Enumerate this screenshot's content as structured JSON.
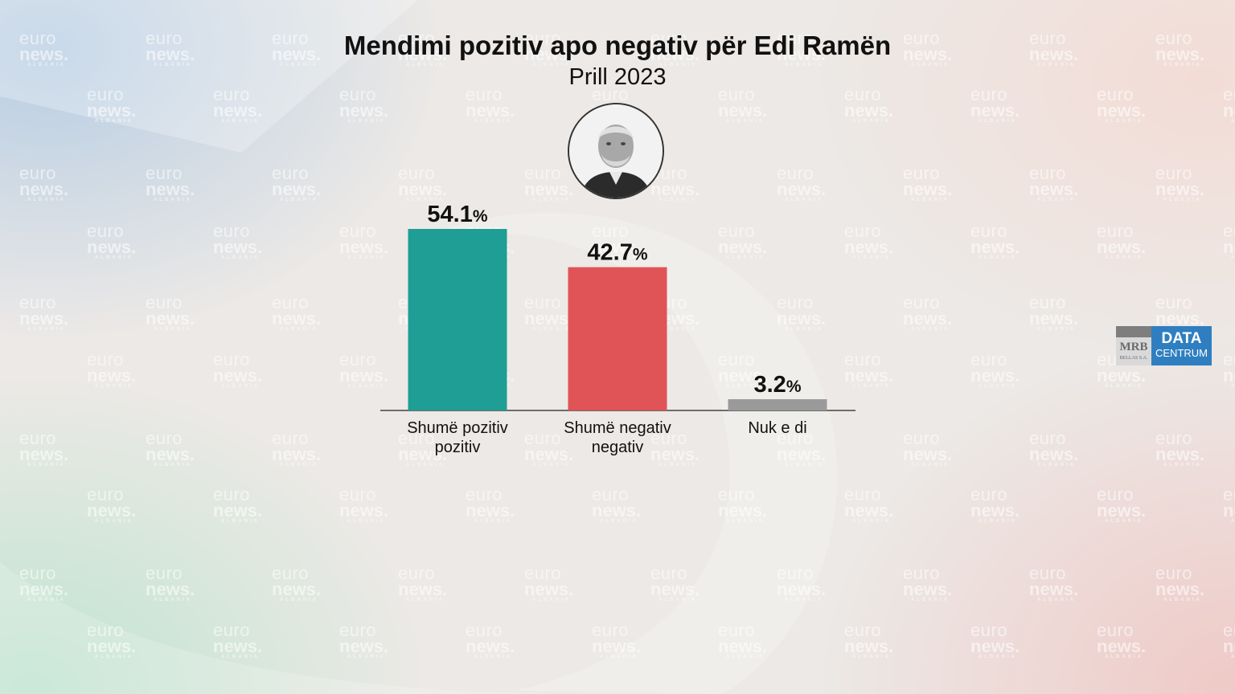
{
  "watermark": {
    "line1": "euro",
    "line2": "news.",
    "line3": "ALBANIA"
  },
  "header": {
    "title": "Mendimi pozitiv apo negativ për Edi Ramën",
    "subtitle": "Prill 2023"
  },
  "portrait": {
    "icon": "person-portrait-icon"
  },
  "logo": {
    "mrb_text": "MRB",
    "mrb_sub": "BELLAS S.A.",
    "data_text": "DATA",
    "centrum_text": "CENTRUM",
    "mrb_color": "#d9d9d9",
    "data_color": "#2f7fc0"
  },
  "chart_data": {
    "type": "bar",
    "title": "Mendimi pozitiv apo negativ për Edi Ramën",
    "subtitle": "Prill 2023",
    "xlabel": "",
    "ylabel": "",
    "ylim": [
      0,
      60
    ],
    "grid": false,
    "legend": "none",
    "unit": "%",
    "categories": [
      [
        "Shumë pozitiv",
        "pozitiv"
      ],
      [
        "Shumë negativ",
        "negativ"
      ],
      [
        "Nuk e di"
      ]
    ],
    "values": [
      54.1,
      42.7,
      3.2
    ],
    "value_labels": [
      "54.1",
      "42.7",
      "3.2"
    ],
    "colors": [
      "#1e9e94",
      "#e05356",
      "#9a9a9a"
    ]
  }
}
